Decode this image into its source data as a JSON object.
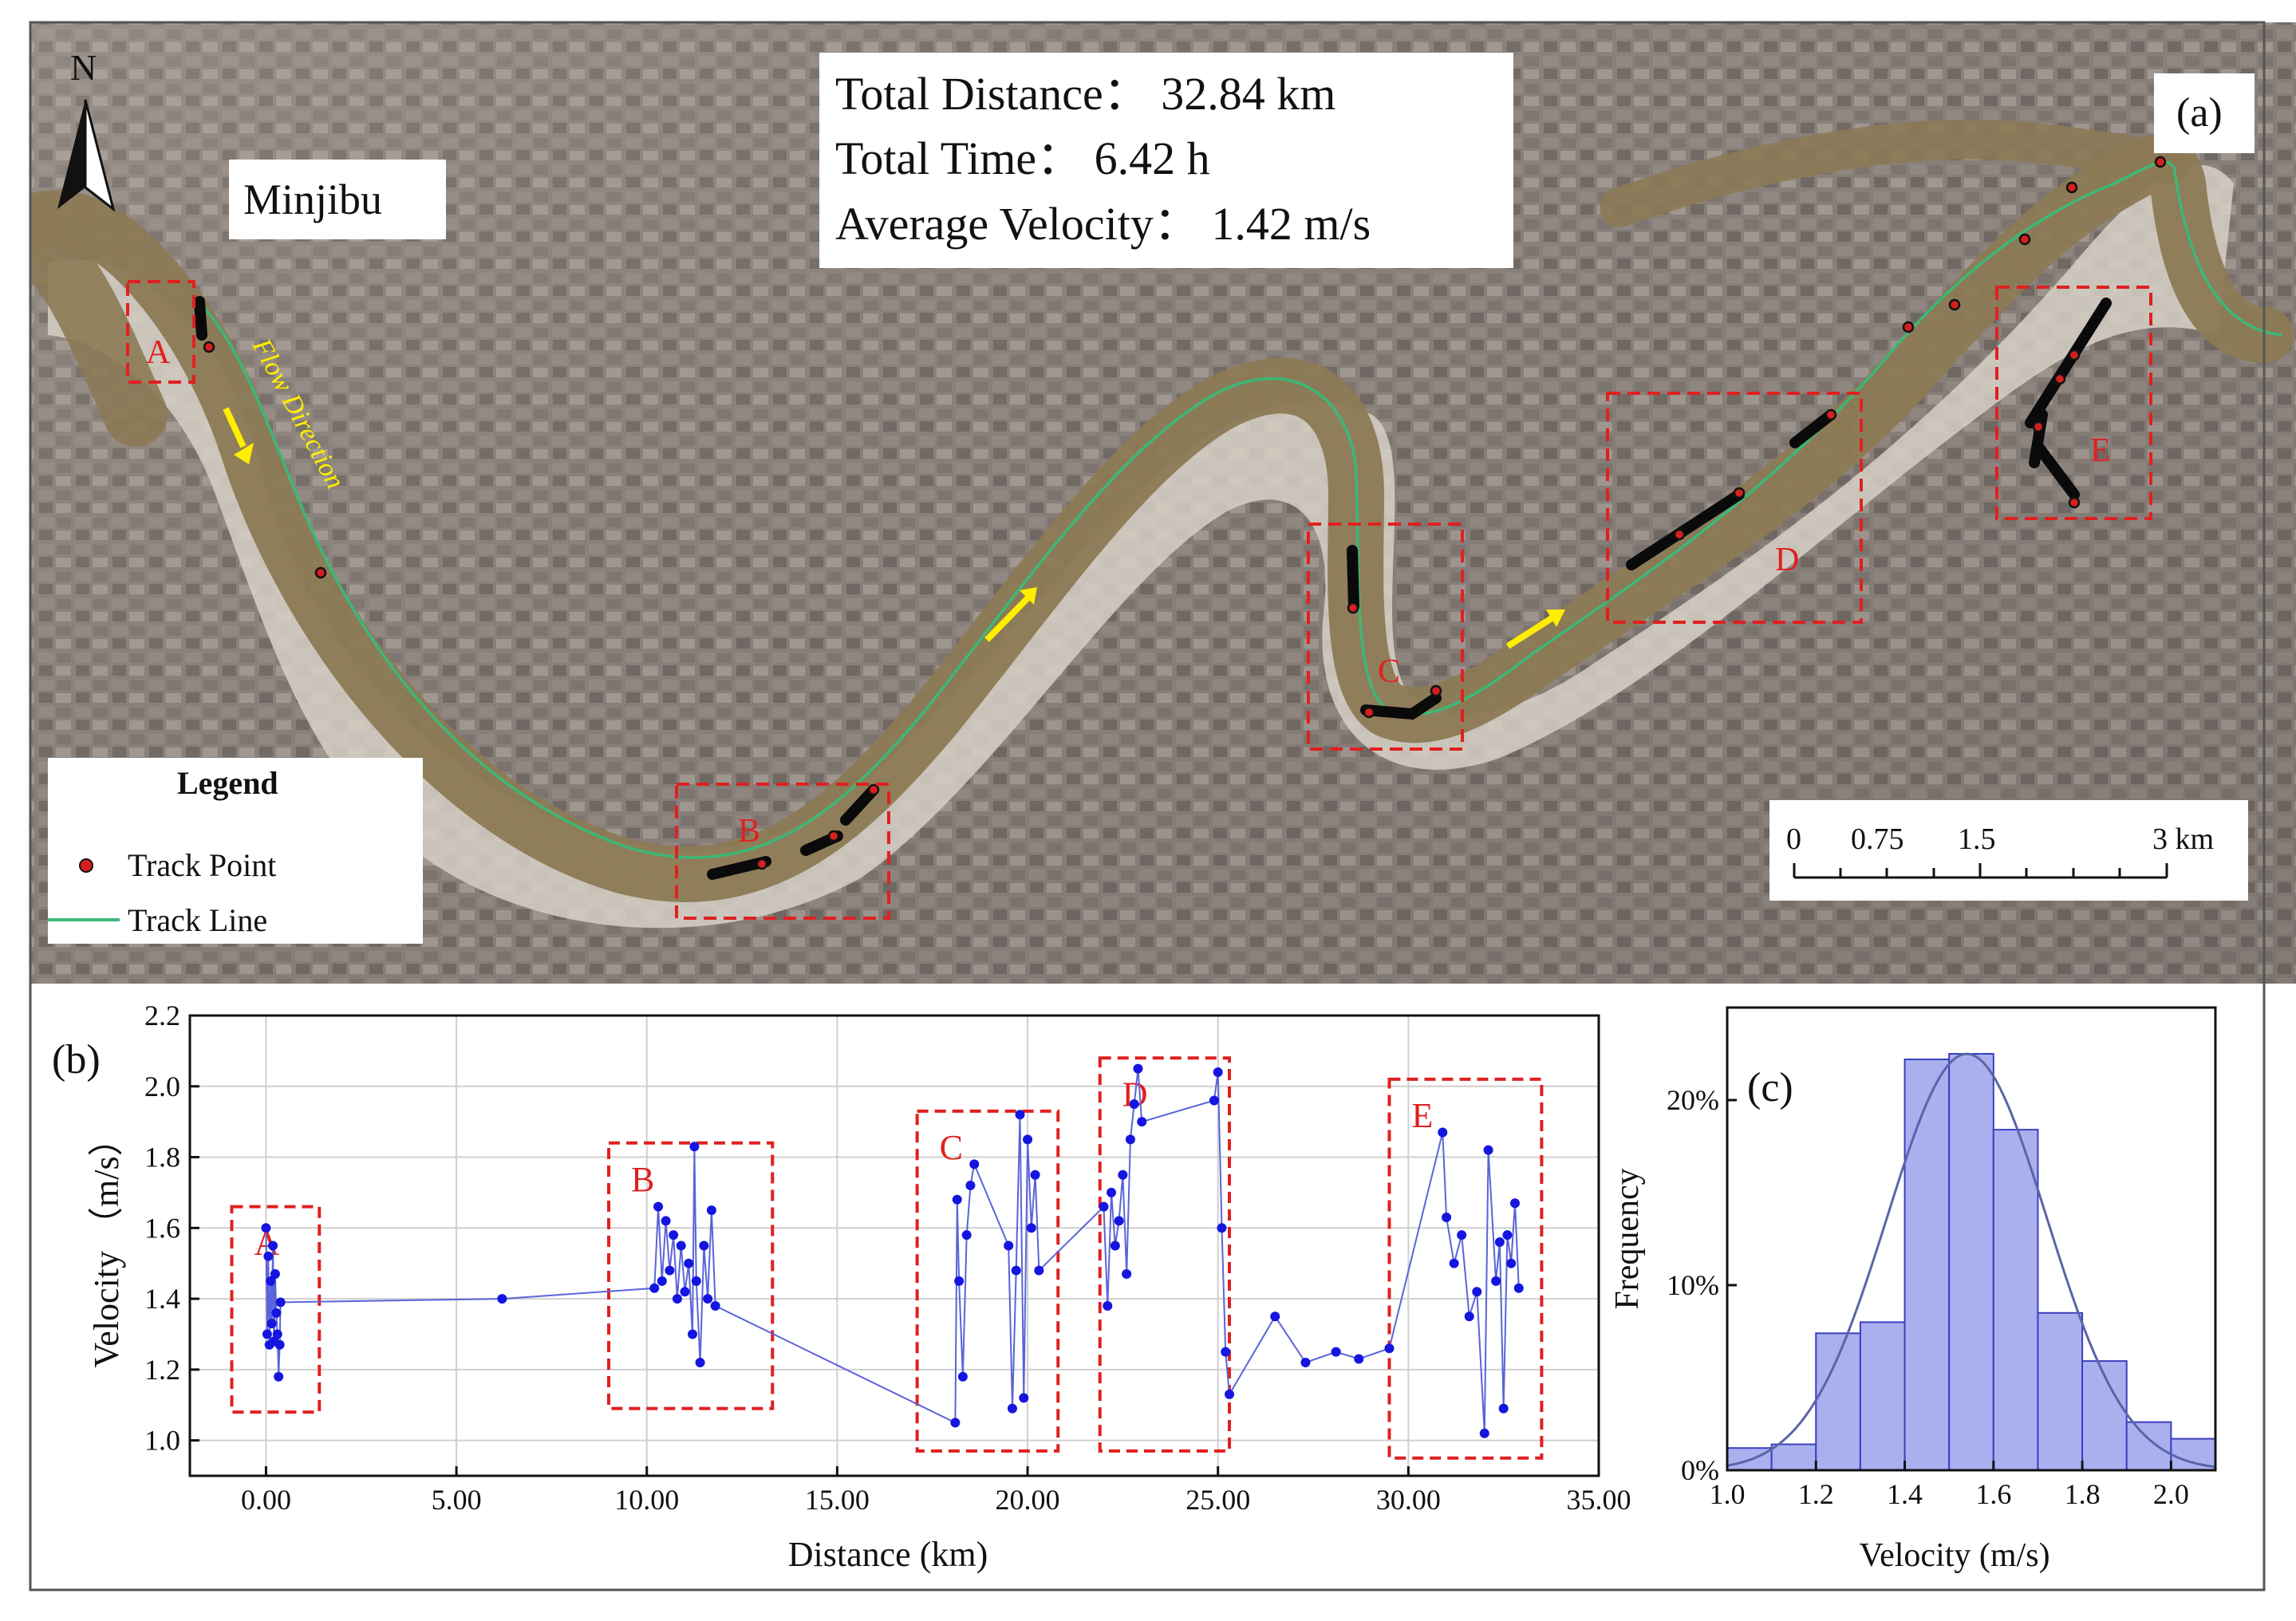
{
  "panel_a": {
    "label": "(a)",
    "stats": {
      "distance": "Total Distance： 32.84 km",
      "time": "Total Time： 6.42 h",
      "velocity": "Average Velocity： 1.42 m/s"
    },
    "place_name": "Minjibu",
    "flow_label": "Flow Direction",
    "north_label": "N",
    "region_labels": [
      "A",
      "B",
      "C",
      "D",
      "E"
    ],
    "legend": {
      "title": "Legend",
      "items": [
        {
          "label": "Track Point",
          "icon": "red-dot-icon"
        },
        {
          "label": "Track Line",
          "icon": "green-line-icon"
        }
      ]
    },
    "scale_bar": {
      "ticks": [
        "0",
        "0.75",
        "1.5",
        "3 km"
      ]
    },
    "colors": {
      "track_point": "#d42020",
      "track_line": "#3cb878",
      "river": "#8c7a55",
      "flow_arrow": "#ffee00",
      "region_box": "#e02020"
    }
  },
  "chart_data": [
    {
      "type": "line",
      "panel_label": "(b)",
      "xlabel": "Distance (km)",
      "ylabel": "Velocity （m/s）",
      "xlim": [
        -2,
        35
      ],
      "ylim": [
        0.9,
        2.2
      ],
      "x_ticks": [
        "0.00",
        "5.00",
        "10.00",
        "15.00",
        "20.00",
        "25.00",
        "30.00",
        "35.00"
      ],
      "y_ticks": [
        "1.0",
        "1.2",
        "1.4",
        "1.6",
        "1.8",
        "2.0",
        "2.2"
      ],
      "grid": true,
      "marker_color": "#1515e0",
      "line_color": "#5a64d8",
      "box_color": "#e02020",
      "boxes": [
        {
          "label": "A",
          "x": [
            -0.9,
            1.4
          ],
          "y": [
            1.08,
            1.66
          ]
        },
        {
          "label": "B",
          "x": [
            9.0,
            13.3
          ],
          "y": [
            1.09,
            1.84
          ]
        },
        {
          "label": "C",
          "x": [
            17.1,
            20.8
          ],
          "y": [
            0.97,
            1.93
          ]
        },
        {
          "label": "D",
          "x": [
            21.9,
            25.3
          ],
          "y": [
            0.97,
            2.08
          ]
        },
        {
          "label": "E",
          "x": [
            29.5,
            33.5
          ],
          "y": [
            0.95,
            2.02
          ]
        }
      ],
      "points": [
        [
          0.0,
          1.6
        ],
        [
          0.03,
          1.3
        ],
        [
          0.06,
          1.52
        ],
        [
          0.09,
          1.27
        ],
        [
          0.12,
          1.45
        ],
        [
          0.15,
          1.33
        ],
        [
          0.18,
          1.55
        ],
        [
          0.21,
          1.28
        ],
        [
          0.24,
          1.47
        ],
        [
          0.27,
          1.36
        ],
        [
          0.3,
          1.3
        ],
        [
          0.33,
          1.18
        ],
        [
          0.36,
          1.27
        ],
        [
          0.38,
          1.39
        ],
        [
          6.2,
          1.4
        ],
        [
          10.2,
          1.43
        ],
        [
          10.3,
          1.66
        ],
        [
          10.4,
          1.45
        ],
        [
          10.5,
          1.62
        ],
        [
          10.6,
          1.48
        ],
        [
          10.7,
          1.58
        ],
        [
          10.8,
          1.4
        ],
        [
          10.9,
          1.55
        ],
        [
          11.0,
          1.42
        ],
        [
          11.1,
          1.5
        ],
        [
          11.2,
          1.3
        ],
        [
          11.25,
          1.83
        ],
        [
          11.3,
          1.45
        ],
        [
          11.4,
          1.22
        ],
        [
          11.5,
          1.55
        ],
        [
          11.6,
          1.4
        ],
        [
          11.7,
          1.65
        ],
        [
          11.8,
          1.38
        ],
        [
          18.1,
          1.05
        ],
        [
          18.15,
          1.68
        ],
        [
          18.2,
          1.45
        ],
        [
          18.3,
          1.18
        ],
        [
          18.4,
          1.58
        ],
        [
          18.5,
          1.72
        ],
        [
          18.6,
          1.78
        ],
        [
          19.5,
          1.55
        ],
        [
          19.6,
          1.09
        ],
        [
          19.7,
          1.48
        ],
        [
          19.8,
          1.92
        ],
        [
          19.9,
          1.12
        ],
        [
          20.0,
          1.85
        ],
        [
          20.1,
          1.6
        ],
        [
          20.2,
          1.75
        ],
        [
          20.3,
          1.48
        ],
        [
          22.0,
          1.66
        ],
        [
          22.1,
          1.38
        ],
        [
          22.2,
          1.7
        ],
        [
          22.3,
          1.55
        ],
        [
          22.4,
          1.62
        ],
        [
          22.5,
          1.75
        ],
        [
          22.6,
          1.47
        ],
        [
          22.7,
          1.85
        ],
        [
          22.8,
          1.95
        ],
        [
          22.9,
          2.05
        ],
        [
          23.0,
          1.9
        ],
        [
          24.9,
          1.96
        ],
        [
          25.0,
          2.04
        ],
        [
          25.1,
          1.6
        ],
        [
          25.2,
          1.25
        ],
        [
          25.3,
          1.13
        ],
        [
          26.5,
          1.35
        ],
        [
          27.3,
          1.22
        ],
        [
          28.1,
          1.25
        ],
        [
          28.7,
          1.23
        ],
        [
          29.5,
          1.26
        ],
        [
          30.9,
          1.87
        ],
        [
          31.0,
          1.63
        ],
        [
          31.2,
          1.5
        ],
        [
          31.4,
          1.58
        ],
        [
          31.6,
          1.35
        ],
        [
          31.8,
          1.42
        ],
        [
          32.0,
          1.02
        ],
        [
          32.1,
          1.82
        ],
        [
          32.3,
          1.45
        ],
        [
          32.4,
          1.56
        ],
        [
          32.5,
          1.09
        ],
        [
          32.6,
          1.58
        ],
        [
          32.7,
          1.5
        ],
        [
          32.8,
          1.67
        ],
        [
          32.9,
          1.43
        ]
      ]
    },
    {
      "type": "bar",
      "panel_label": "(c)",
      "xlabel": "Velocity (m/s)",
      "ylabel": "Frequency",
      "xlim": [
        1.0,
        2.1
      ],
      "ylim": [
        0,
        25
      ],
      "x_ticks": [
        "1.0",
        "1.2",
        "1.4",
        "1.6",
        "1.8",
        "2.0"
      ],
      "y_ticks": [
        "0%",
        "10%",
        "20%"
      ],
      "bin_width": 0.1,
      "bin_starts": [
        1.0,
        1.1,
        1.2,
        1.3,
        1.4,
        1.5,
        1.6,
        1.7,
        1.8,
        1.9,
        2.0
      ],
      "values": [
        1.2,
        1.4,
        7.4,
        8.0,
        22.2,
        22.5,
        18.4,
        8.5,
        5.9,
        2.6,
        1.7
      ],
      "fit": {
        "type": "normal",
        "mean": 1.54,
        "sd": 0.18,
        "peak": 22.5
      },
      "bar_color": "#aab0ee",
      "bar_edge": "#3a3fc0",
      "fit_color": "#5a64a8"
    }
  ]
}
